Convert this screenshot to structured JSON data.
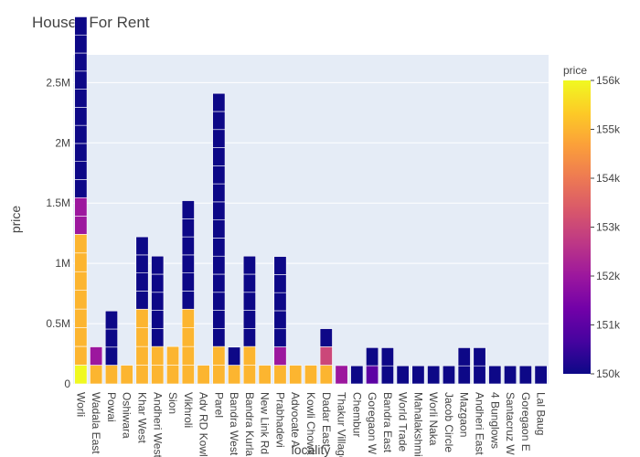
{
  "chart_data": {
    "type": "bar",
    "title": "Houses For Rent",
    "xlabel": "locality",
    "ylabel": "price",
    "ylim": [
      0,
      2730000
    ],
    "yticks": [
      {
        "value": 0,
        "label": "0"
      },
      {
        "value": 500000,
        "label": "0.5M"
      },
      {
        "value": 1000000,
        "label": "1M"
      },
      {
        "value": 1500000,
        "label": "1.5M"
      },
      {
        "value": 2000000,
        "label": "2M"
      },
      {
        "value": 2500000,
        "label": "2.5M"
      }
    ],
    "color_scale": {
      "title": "price",
      "min": 150000,
      "max": 156000,
      "ticks": [
        "150k",
        "151k",
        "152k",
        "153k",
        "154k",
        "155k",
        "156k"
      ],
      "stops": [
        "#0d0887",
        "#46039f",
        "#7201a8",
        "#9c179e",
        "#bd3786",
        "#d8576b",
        "#ed7953",
        "#fb9f3a",
        "#fdca26",
        "#f0f921"
      ]
    },
    "categories": [
      "Worli",
      "Wadala East",
      "Powai",
      "Oshiwara",
      "Khar West",
      "Andheri West",
      "Sion",
      "Vikhroli",
      "Adv RD Kowl",
      "Parel",
      "Bandra West",
      "Bandra Kurla",
      "New Link Rd",
      "Prabhadevi",
      "Advocate A",
      "Kowli Chowk",
      "Dadar East",
      "Thakur Village",
      "Chembur",
      "Goregaon W",
      "Bandra East",
      "World Trade",
      "Mahalakshmi",
      "Worli Naka",
      "Jacob Circle",
      "Mazgaon",
      "Andheri East",
      "4 Bunglows",
      "Santacruz W",
      "Goregaon E",
      "Lal Baug"
    ],
    "stacks": [
      [
        155999,
        155000,
        155000,
        155000,
        155000,
        155000,
        155000,
        155000,
        152000,
        152000,
        150000,
        150000,
        150000,
        150000,
        150000,
        150000,
        150000,
        150000,
        150000,
        150000
      ],
      [
        155000,
        152000
      ],
      [
        155000,
        150000,
        150000,
        150000
      ],
      [
        155000
      ],
      [
        155000,
        155000,
        155000,
        155000,
        150000,
        150000,
        150000,
        150000
      ],
      [
        155000,
        155000,
        150000,
        150000,
        150000,
        150000,
        150000
      ],
      [
        155000,
        155000
      ],
      [
        155000,
        155000,
        155000,
        155000,
        150000,
        150000,
        150000,
        150000,
        150000,
        150000
      ],
      [
        155000
      ],
      [
        155000,
        155000,
        150000,
        150000,
        150000,
        150000,
        150000,
        150000,
        150000,
        150000,
        150000,
        150000,
        150000,
        150000,
        150000,
        150000
      ],
      [
        155000,
        150000
      ],
      [
        155000,
        155000,
        150000,
        150000,
        150000,
        150000,
        150000
      ],
      [
        155000
      ],
      [
        155000,
        152000,
        150000,
        150000,
        150000,
        150000,
        150000
      ],
      [
        155000
      ],
      [
        155000
      ],
      [
        155000,
        153000,
        150000
      ],
      [
        152000
      ],
      [
        150000
      ],
      [
        151000,
        150000
      ],
      [
        150000,
        150000
      ],
      [
        150000
      ],
      [
        150000
      ],
      [
        150000
      ],
      [
        150000
      ],
      [
        150000,
        150000
      ],
      [
        150000,
        150000
      ],
      [
        150000
      ],
      [
        150000
      ],
      [
        150000
      ],
      [
        150000
      ]
    ]
  }
}
